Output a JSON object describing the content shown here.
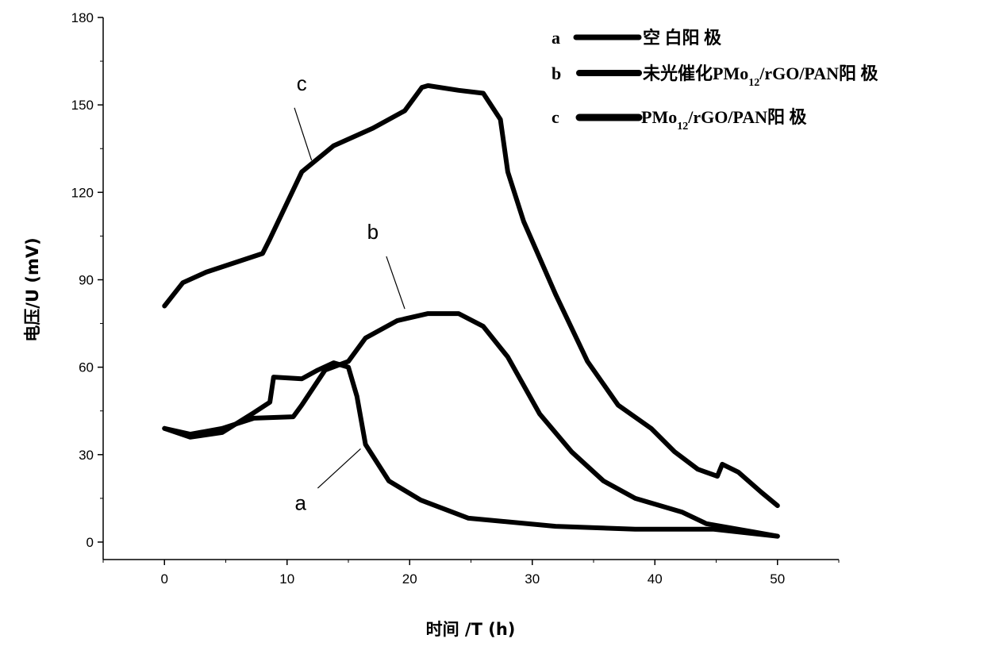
{
  "chart_data": {
    "type": "line",
    "title": "",
    "xlabel": "时间 /T (h)",
    "ylabel": "电压/U (mV)",
    "xlim": [
      -5,
      55
    ],
    "ylim": [
      -6,
      180
    ],
    "xticks": [
      0,
      10,
      20,
      30,
      40,
      50
    ],
    "yticks": [
      0,
      30,
      60,
      90,
      120,
      150,
      180
    ],
    "xtick_labels": [
      "0",
      "10",
      "20",
      "30",
      "40",
      "50"
    ],
    "ytick_labels": [
      "0",
      "30",
      "60",
      "90",
      "120",
      "150",
      "180"
    ],
    "grid": false,
    "legend_position": "top-right",
    "series": [
      {
        "key": "a",
        "name": "空 白阳 极",
        "x": [
          0,
          2.1,
          4.7,
          7.3,
          8.6,
          8.9,
          11.2,
          12.5,
          13.8,
          15,
          15.7,
          16.4,
          18.3,
          20.9,
          24.8,
          31.9,
          38.4,
          44.8,
          50
        ],
        "y": [
          39,
          36,
          37.6,
          44.4,
          48,
          56.6,
          56,
          59,
          61.5,
          60,
          50,
          33.5,
          21,
          14.4,
          8.2,
          5.4,
          4.4,
          4.4,
          2
        ]
      },
      {
        "key": "b",
        "name_pre": "未光催化PMo",
        "name_sub": "12",
        "name_post": "/rGO/PAN阳 极",
        "x": [
          0,
          2.1,
          4.7,
          7.3,
          10.5,
          11.2,
          13.1,
          15,
          16.4,
          19,
          21.5,
          24,
          26,
          28,
          30.6,
          33.2,
          35.8,
          38.4,
          42.2,
          44.2,
          48,
          50
        ],
        "y": [
          39,
          37,
          39,
          42.5,
          43,
          47,
          59,
          62,
          70,
          76,
          78.4,
          78.4,
          74,
          63.5,
          44,
          31,
          21,
          15,
          10.3,
          6.3,
          3.5,
          2
        ]
      },
      {
        "key": "c",
        "name_pre": "PMo",
        "name_sub": "12",
        "name_post": "/rGO/PAN阳 极",
        "x": [
          0,
          1.5,
          3.4,
          8,
          8.6,
          11.2,
          13.8,
          17,
          19.6,
          21,
          21.5,
          24,
          26,
          27.4,
          28,
          29.3,
          31.9,
          34.5,
          37,
          39.7,
          41.6,
          43.5,
          45.1,
          45.5,
          46.8,
          48.7,
          50
        ],
        "y": [
          81,
          89,
          92.6,
          99,
          104,
          127,
          136,
          142,
          148,
          156,
          156.6,
          155,
          154,
          145,
          127,
          110,
          85,
          62,
          47,
          39,
          31,
          25,
          22.6,
          26.7,
          24,
          17,
          12.5
        ]
      }
    ],
    "annotations": [
      {
        "text": "c",
        "x": 11.2,
        "y": 155,
        "line_from": [
          10.6,
          149
        ],
        "line_to": [
          12.0,
          131
        ]
      },
      {
        "text": "b",
        "x": 17.0,
        "y": 104,
        "line_from": [
          18.1,
          98
        ],
        "line_to": [
          19.6,
          80
        ]
      },
      {
        "text": "a",
        "x": 11.1,
        "y": 11,
        "line_from": [
          12.5,
          18.5
        ],
        "line_to": [
          16.0,
          32
        ]
      }
    ]
  }
}
